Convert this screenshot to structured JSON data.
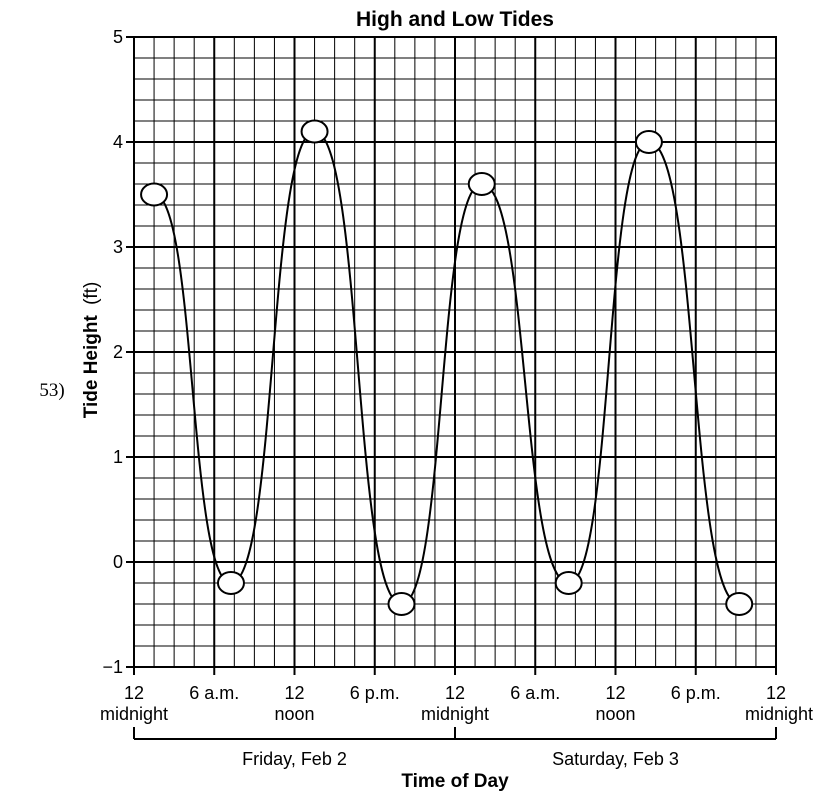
{
  "question_number": "53)",
  "chart_data": {
    "type": "line",
    "title": "High and Low Tides",
    "ylabel_main": "Tide Height",
    "ylabel_unit": "(ft)",
    "xlabel": "Time of Day",
    "ylim": [
      -1,
      5
    ],
    "xlim": [
      0,
      48
    ],
    "y_ticks": [
      "5",
      "4",
      "3",
      "2",
      "1",
      "0",
      "−1"
    ],
    "x_tick_labels": [
      {
        "x": 0,
        "line1": "12",
        "line2": "midnight"
      },
      {
        "x": 6,
        "line1": "6 a.m.",
        "line2": ""
      },
      {
        "x": 12,
        "line1": "12",
        "line2": "noon"
      },
      {
        "x": 18,
        "line1": "6 p.m.",
        "line2": ""
      },
      {
        "x": 24,
        "line1": "12",
        "line2": "midnight"
      },
      {
        "x": 30,
        "line1": "6 a.m.",
        "line2": ""
      },
      {
        "x": 36,
        "line1": "12",
        "line2": "noon"
      },
      {
        "x": 42,
        "line1": "6 p.m.",
        "line2": ""
      },
      {
        "x": 48,
        "line1": "12",
        "line2": "midnight"
      }
    ],
    "day_groups": [
      {
        "label": "Friday, Feb 2",
        "x_start": 0,
        "x_end": 24
      },
      {
        "label": "Saturday, Feb 3",
        "x_start": 24,
        "x_end": 48
      }
    ],
    "grid": true,
    "grid_major_x_step": 6,
    "grid_minor_x_step": 1.5,
    "grid_major_y_step": 1,
    "grid_minor_y_step": 0.2,
    "series": [
      {
        "x": [
          1.5,
          7.25,
          13.5,
          20,
          26,
          32.5,
          38.5,
          45.25
        ],
        "y": [
          3.5,
          -0.2,
          4.1,
          -0.4,
          3.6,
          -0.2,
          4.0,
          -0.4
        ]
      }
    ]
  }
}
